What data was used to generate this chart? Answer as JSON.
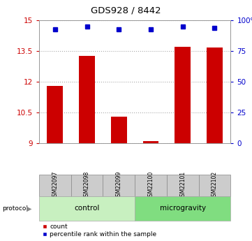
{
  "title": "GDS928 / 8442",
  "samples": [
    "GSM22097",
    "GSM22098",
    "GSM22099",
    "GSM22100",
    "GSM22101",
    "GSM22102"
  ],
  "red_values": [
    11.8,
    13.28,
    10.3,
    9.1,
    13.72,
    13.68
  ],
  "blue_values": [
    93,
    95,
    93,
    93,
    95,
    94
  ],
  "ylim_left": [
    9,
    15
  ],
  "ylim_right": [
    0,
    100
  ],
  "yticks_left": [
    9,
    10.5,
    12,
    13.5,
    15
  ],
  "ytick_labels_left": [
    "9",
    "10.5",
    "12",
    "13.5",
    "15"
  ],
  "yticks_right": [
    0,
    25,
    50,
    75,
    100
  ],
  "ytick_labels_right": [
    "0",
    "25",
    "50",
    "75",
    "100%"
  ],
  "groups": [
    {
      "label": "control",
      "indices": [
        0,
        1,
        2
      ],
      "color": "#c8f0c0"
    },
    {
      "label": "microgravity",
      "indices": [
        3,
        4,
        5
      ],
      "color": "#80dd80"
    }
  ],
  "protocol_label": "protocol",
  "bar_color": "#cc0000",
  "marker_color": "#0000cc",
  "bar_bottom": 9,
  "legend_items": [
    {
      "label": "count",
      "color": "#cc0000"
    },
    {
      "label": "percentile rank within the sample",
      "color": "#0000cc"
    }
  ],
  "background_color": "#ffffff",
  "grid_color": "#aaaaaa",
  "bar_width": 0.5,
  "sample_label_color": "#cccccc",
  "sample_label_edge": "#888888"
}
